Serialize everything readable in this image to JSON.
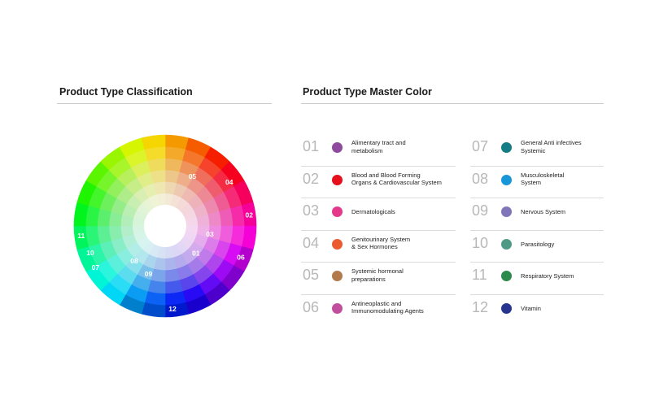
{
  "left_section": {
    "title": "Product Type Classification",
    "wheel_labels": [
      "01",
      "02",
      "03",
      "04",
      "05",
      "06",
      "07",
      "08",
      "09",
      "10",
      "11",
      "12"
    ]
  },
  "right_section": {
    "title": "Product Type Master Color",
    "items": [
      {
        "number": "01",
        "label": "Alimentary tract and\nmetabolism",
        "color": "#8e4a9c"
      },
      {
        "number": "02",
        "label": "Blood and Blood Forming\nOrgans & Cardiovascular System",
        "color": "#e5101c"
      },
      {
        "number": "03",
        "label": "Dermatologicals",
        "color": "#e4388a"
      },
      {
        "number": "04",
        "label": "Genitourinary System\n& Sex Hormones",
        "color": "#ec5b2f"
      },
      {
        "number": "05",
        "label": "Systemic hormonal\npreparations",
        "color": "#b27a4a"
      },
      {
        "number": "06",
        "label": "Antineoplastic and\nImmunomodulating Agents",
        "color": "#c24f9e"
      },
      {
        "number": "07",
        "label": "General Anti infectives\nSystemic",
        "color": "#137c84"
      },
      {
        "number": "08",
        "label": "Musculoskeletal\nSystem",
        "color": "#1996d8"
      },
      {
        "number": "09",
        "label": "Nervous System",
        "color": "#7f75b8"
      },
      {
        "number": "10",
        "label": "Parasitology",
        "color": "#4e9a86"
      },
      {
        "number": "11",
        "label": "Respiratory System",
        "color": "#2c8a4d"
      },
      {
        "number": "12",
        "label": "Vitamin",
        "color": "#28358f"
      }
    ]
  }
}
